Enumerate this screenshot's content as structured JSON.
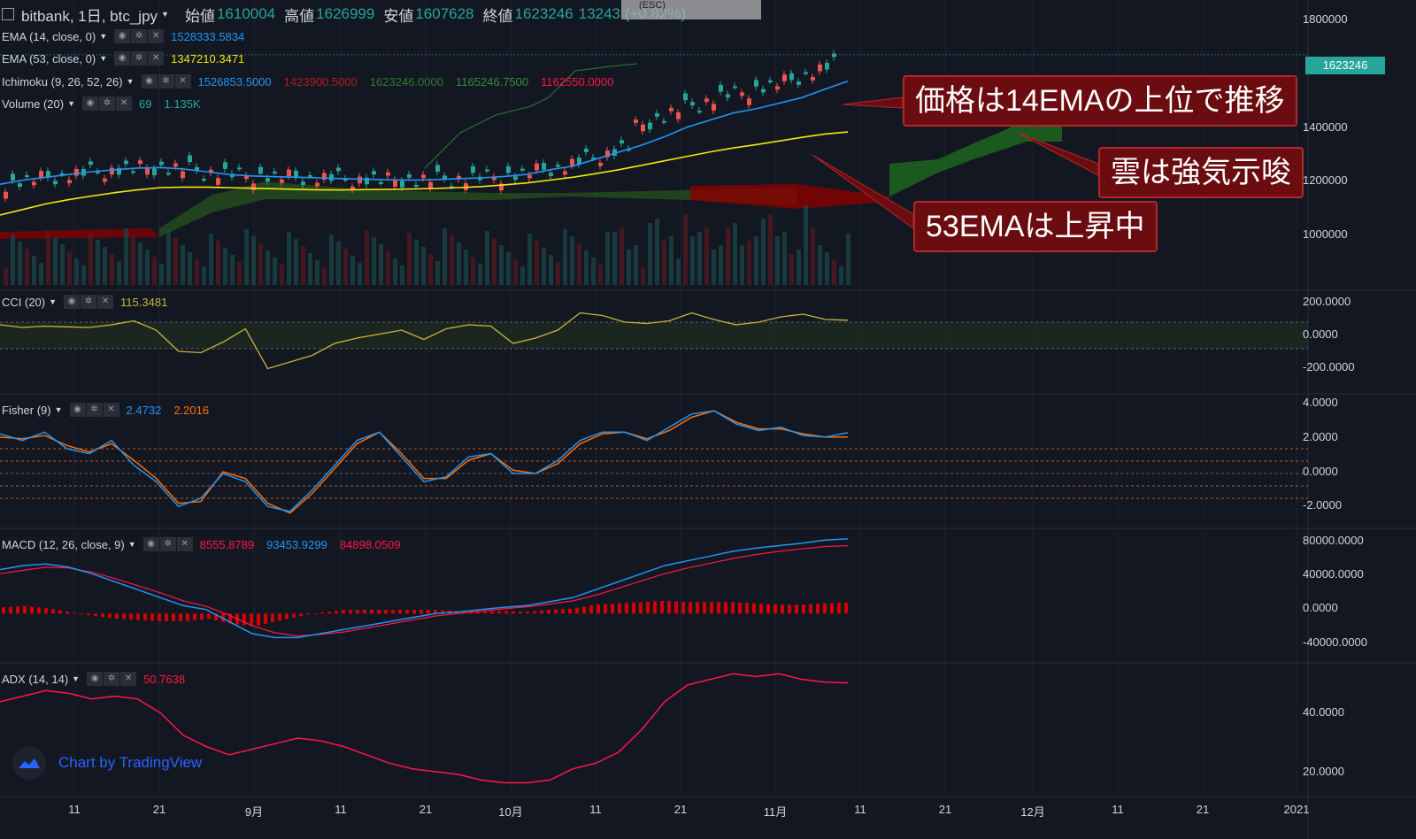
{
  "header": {
    "symbol": "bitbank, 1日, btc_jpy",
    "open_label": "始値",
    "open": "1610004",
    "high_label": "高値",
    "high": "1626999",
    "low_label": "安値",
    "low": "1607628",
    "close_label": "終値",
    "close": "1623246",
    "change": "13243 (+0.82%)",
    "esc": "(ESC)"
  },
  "indicators": {
    "ema14": {
      "name": "EMA (14, close, 0)",
      "value": "1528333.5834",
      "color": "#2196f3"
    },
    "ema53": {
      "name": "EMA (53, close, 0)",
      "value": "1347210.3471",
      "color": "#f5e60f"
    },
    "ichimoku": {
      "name": "Ichimoku (9, 26, 52, 26)",
      "values": [
        "1526853.5000",
        "1423900.5000",
        "1623246.0000",
        "1165246.7500",
        "1162550.0000"
      ],
      "colors": [
        "#2196f3",
        "#b71c1c",
        "#2e7d32",
        "#388e3c",
        "#ff1744"
      ]
    },
    "volume": {
      "name": "Volume (20)",
      "values": [
        "69",
        "1.135K"
      ],
      "color": "#26a69a"
    },
    "cci": {
      "name": "CCI (20)",
      "value": "115.3481",
      "color": "#c9b53a"
    },
    "fisher": {
      "name": "Fisher (9)",
      "values": [
        "2.4732",
        "2.2016"
      ],
      "colors": [
        "#2196f3",
        "#ff6d00"
      ]
    },
    "macd": {
      "name": "MACD (12, 26, close, 9)",
      "values": [
        "8555.8789",
        "93453.9299",
        "84898.0509"
      ],
      "colors": [
        "#ff1744",
        "#2196f3",
        "#ff1744"
      ]
    },
    "adx": {
      "name": "ADX (14, 14)",
      "value": "50.7638",
      "color": "#ff1744"
    }
  },
  "price_axis": [
    "1800000",
    "1400000",
    "1200000",
    "1000000"
  ],
  "last_price": "1623246",
  "cci_axis": [
    "200.0000",
    "0.0000",
    "-200.0000"
  ],
  "fisher_axis": [
    "4.0000",
    "2.0000",
    "0.0000",
    "-2.0000"
  ],
  "macd_axis": [
    "80000.0000",
    "40000.0000",
    "0.0000",
    "-40000.0000"
  ],
  "adx_axis": [
    "40.0000",
    "20.0000"
  ],
  "time_axis": [
    "11",
    "21",
    "9月",
    "11",
    "21",
    "10月",
    "11",
    "21",
    "11月",
    "11",
    "21",
    "12月",
    "11",
    "21",
    "2021"
  ],
  "callouts": [
    "価格は14EMAの上位で推移",
    "雲は強気示唆",
    "53EMAは上昇中"
  ],
  "brand": "Chart by TradingView",
  "chart_data": {
    "type": "line",
    "xlabel": "",
    "ylabel": "",
    "price_range": [
      800000,
      1800000
    ],
    "price_ticks": [
      1000000,
      1200000,
      1400000,
      1800000
    ],
    "ema14": [
      1160000,
      1175000,
      1185000,
      1195000,
      1205000,
      1212000,
      1218000,
      1220000,
      1215000,
      1205000,
      1195000,
      1190000,
      1187000,
      1185000,
      1183000,
      1180000,
      1178000,
      1176000,
      1175000,
      1177000,
      1180000,
      1183000,
      1188000,
      1196000,
      1212000,
      1225000,
      1250000,
      1275000,
      1300000,
      1330000,
      1365000,
      1390000,
      1415000,
      1430000,
      1450000,
      1470000,
      1500000,
      1528334
    ],
    "ema53": [
      1050000,
      1070000,
      1090000,
      1105000,
      1118000,
      1130000,
      1140000,
      1148000,
      1150000,
      1150000,
      1148000,
      1146000,
      1144000,
      1142000,
      1140000,
      1140000,
      1141000,
      1142000,
      1143000,
      1145000,
      1148000,
      1152000,
      1158000,
      1165000,
      1175000,
      1185000,
      1198000,
      1212000,
      1228000,
      1244000,
      1260000,
      1276000,
      1290000,
      1302000,
      1315000,
      1328000,
      1340000,
      1347210
    ],
    "cci_range": [
      -400,
      300
    ],
    "cci": [
      80,
      60,
      70,
      65,
      60,
      80,
      110,
      40,
      -120,
      -130,
      -50,
      50,
      -250,
      -200,
      -150,
      -60,
      -20,
      10,
      40,
      -30,
      50,
      80,
      70,
      -60,
      -20,
      40,
      170,
      150,
      100,
      90,
      110,
      170,
      120,
      80,
      100,
      140,
      160,
      120,
      115
    ],
    "fisher_range": [
      -3,
      4.5
    ],
    "fisher_blue": [
      2.4,
      2.0,
      2.5,
      1.5,
      1.2,
      2.0,
      0.5,
      -0.5,
      -2.0,
      -1.5,
      0.0,
      -0.5,
      -2.0,
      -2.3,
      -1.0,
      0.5,
      2.0,
      2.5,
      1.0,
      -0.5,
      -0.2,
      1.0,
      1.2,
      0.0,
      0.0,
      0.8,
      2.0,
      2.5,
      2.5,
      2.0,
      2.8,
      3.6,
      3.8,
      3.0,
      2.6,
      2.8,
      2.3,
      2.2,
      2.47
    ],
    "fisher_orange": [
      2.2,
      2.1,
      2.3,
      1.7,
      1.3,
      1.8,
      0.8,
      -0.3,
      -1.8,
      -1.7,
      0.1,
      -0.3,
      -1.8,
      -2.4,
      -1.2,
      0.3,
      1.8,
      2.5,
      1.2,
      -0.3,
      -0.3,
      0.8,
      1.2,
      0.2,
      0.0,
      0.6,
      1.8,
      2.4,
      2.5,
      2.1,
      2.6,
      3.4,
      3.8,
      3.1,
      2.7,
      2.7,
      2.4,
      2.2,
      2.2
    ],
    "macd_range": [
      -55000,
      100000
    ],
    "macd_line": [
      55000,
      60000,
      62000,
      58000,
      50000,
      40000,
      30000,
      20000,
      10000,
      5000,
      -10000,
      -25000,
      -30000,
      -30000,
      -25000,
      -20000,
      -15000,
      -10000,
      -5000,
      0,
      2000,
      5000,
      8000,
      10000,
      15000,
      20000,
      30000,
      40000,
      50000,
      60000,
      66000,
      72000,
      78000,
      82000,
      85000,
      88000,
      92000,
      93454
    ],
    "macd_signal": [
      50000,
      54000,
      58000,
      57000,
      52000,
      44000,
      35000,
      26000,
      16000,
      9000,
      -2000,
      -15000,
      -24000,
      -28000,
      -26000,
      -23000,
      -18000,
      -13000,
      -8000,
      -3000,
      0,
      3000,
      6000,
      8500,
      12000,
      16000,
      23000,
      32000,
      41000,
      50000,
      57000,
      63000,
      69000,
      74000,
      78000,
      81000,
      84000,
      84898
    ],
    "adx_range": [
      12,
      56
    ],
    "adx": [
      44,
      46,
      48,
      47,
      45,
      46,
      45,
      40,
      32,
      28,
      25,
      27,
      29,
      31,
      30,
      28,
      25,
      22,
      20,
      19,
      18,
      16,
      15,
      15,
      16,
      20,
      22,
      26,
      34,
      44,
      50,
      52,
      54,
      53,
      54,
      52,
      51,
      50.76
    ]
  }
}
